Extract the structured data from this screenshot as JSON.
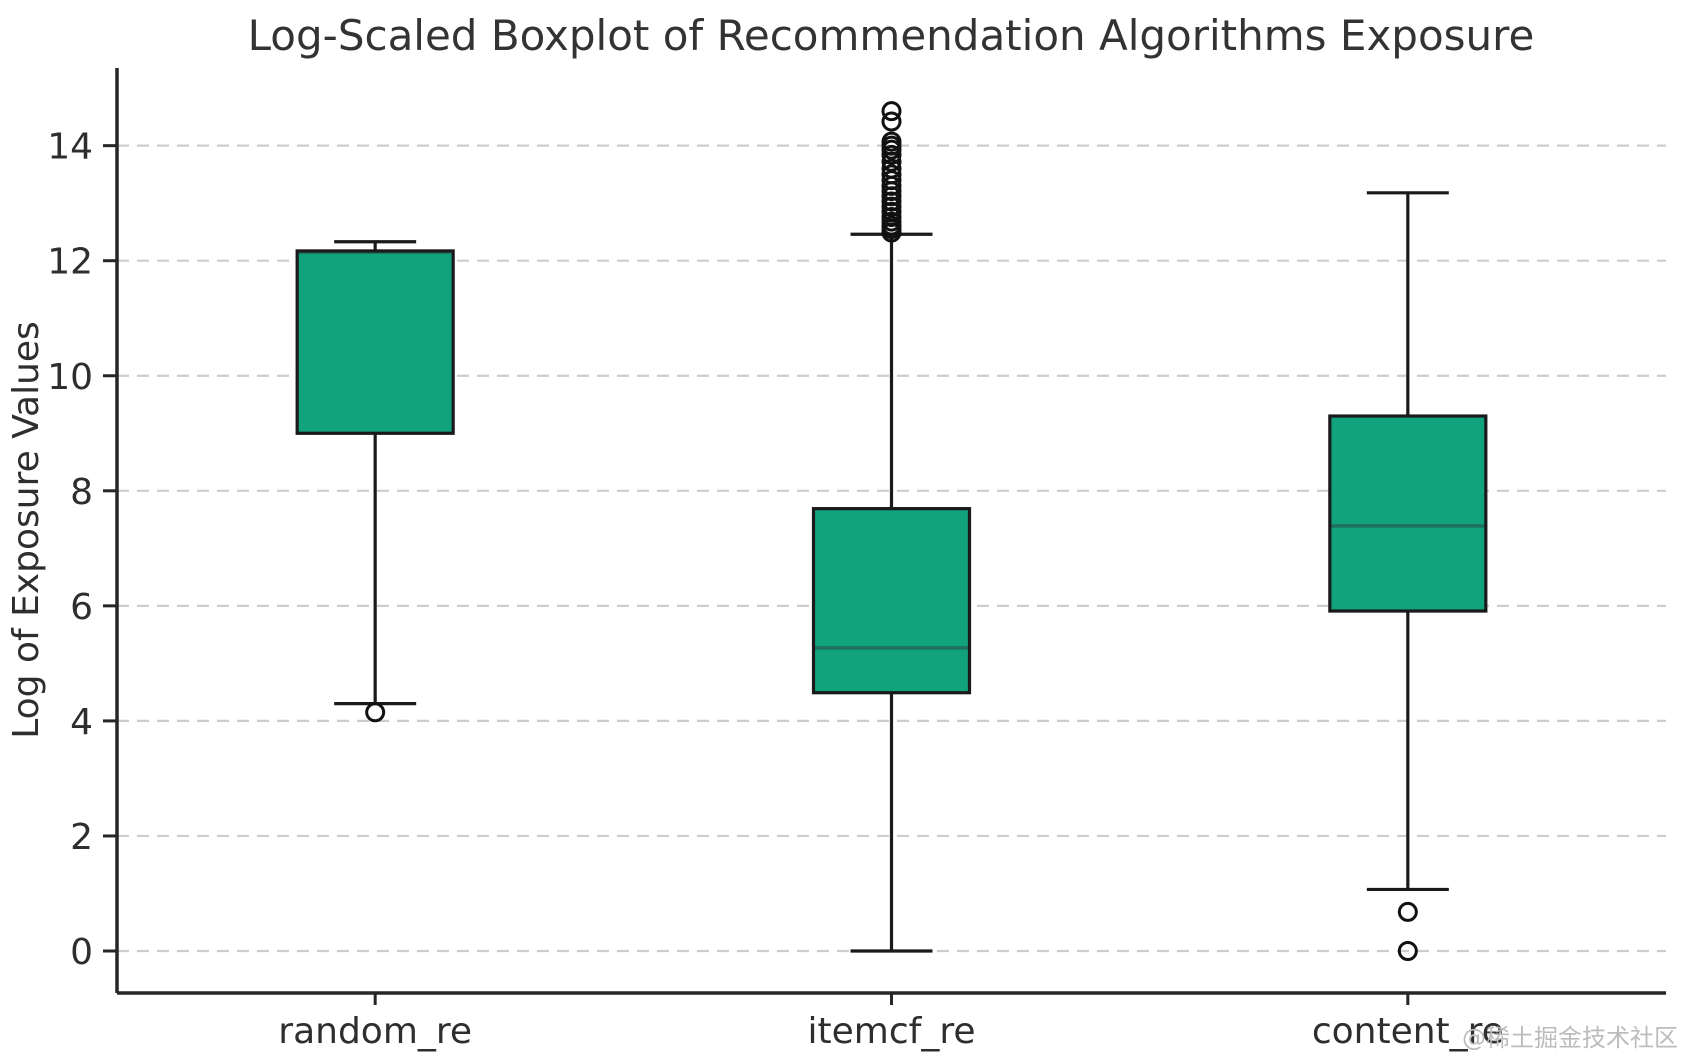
{
  "watermark": "@稀土掘金技术社区",
  "chart_data": {
    "type": "boxplot",
    "title": "Log-Scaled Boxplot of Recommendation Algorithms Exposure",
    "xlabel": "",
    "ylabel": "Log of Exposure Values",
    "categories": [
      "random_re",
      "itemcf_re",
      "content_re"
    ],
    "y_ticks": [
      0,
      2,
      4,
      6,
      8,
      10,
      12,
      14
    ],
    "ylim": [
      -0.73,
      15.35
    ],
    "grid": "horizontal-dashed",
    "legend": "none",
    "colors": {
      "box_fill": "#11a27e",
      "box_edge": "#1a1a1a",
      "median": "#1e6f5c",
      "whisker": "#1a1a1a",
      "outlier": "#111111",
      "grid": "#cdcdcd",
      "text": "#2e2e2e",
      "spine": "#262626",
      "watermark": "#bcbcbc"
    },
    "series": [
      {
        "label": "random_re",
        "whisker_low": 4.3,
        "q1": 9.0,
        "median": 12.15,
        "q3": 12.17,
        "whisker_high": 12.33,
        "outliers": [
          4.15
        ]
      },
      {
        "label": "itemcf_re",
        "whisker_low": 0.0,
        "q1": 4.49,
        "median": 5.27,
        "q3": 7.69,
        "whisker_high": 12.46,
        "outliers": [
          12.49,
          12.55,
          12.61,
          12.68,
          12.76,
          12.85,
          12.94,
          13.03,
          13.12,
          13.21,
          13.3,
          13.4,
          13.5,
          13.6,
          13.72,
          13.84,
          13.93,
          14.0,
          14.07,
          14.42,
          14.6
        ]
      },
      {
        "label": "content_re",
        "whisker_low": 1.07,
        "q1": 5.91,
        "median": 7.39,
        "q3": 9.3,
        "whisker_high": 13.18,
        "outliers": [
          0.68,
          0.0
        ]
      }
    ]
  }
}
